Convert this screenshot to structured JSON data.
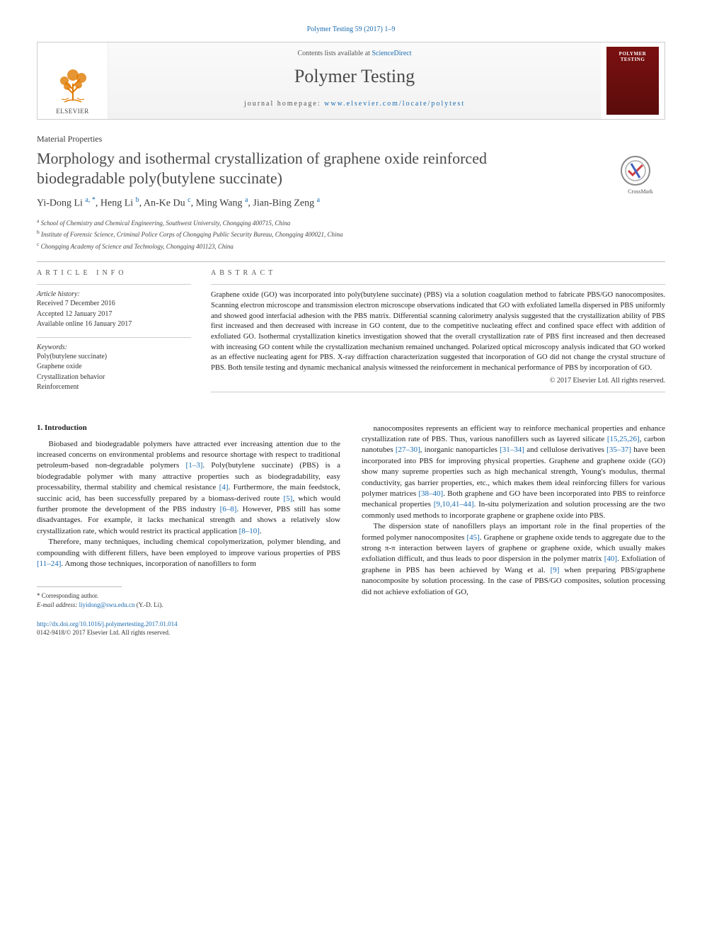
{
  "citation": "Polymer Testing 59 (2017) 1–9",
  "masthead": {
    "contents_prefix": "Contents lists available at ",
    "contents_link": "ScienceDirect",
    "journal": "Polymer Testing",
    "home_prefix": "journal homepage: ",
    "home_url": "www.elsevier.com/locate/polytest",
    "publisher": "ELSEVIER",
    "cover_title": "POLYMER TESTING"
  },
  "section_label": "Material Properties",
  "title": "Morphology and isothermal crystallization of graphene oxide reinforced biodegradable poly(butylene succinate)",
  "crossmark": "CrossMark",
  "authors": [
    {
      "name": "Yi-Dong Li",
      "aff": "a",
      "corr": true
    },
    {
      "name": "Heng Li",
      "aff": "b",
      "corr": false
    },
    {
      "name": "An-Ke Du",
      "aff": "c",
      "corr": false
    },
    {
      "name": "Ming Wang",
      "aff": "a",
      "corr": false
    },
    {
      "name": "Jian-Bing Zeng",
      "aff": "a",
      "corr": false
    }
  ],
  "affiliations": [
    {
      "key": "a",
      "text": "School of Chemistry and Chemical Engineering, Southwest University, Chongqing 400715, China"
    },
    {
      "key": "b",
      "text": "Institute of Forensic Science, Criminal Police Corps of Chongqing Public Security Bureau, Chongqing 400021, China"
    },
    {
      "key": "c",
      "text": "Chongqing Academy of Science and Technology, Chongqing 401123, China"
    }
  ],
  "info": {
    "heading": "ARTICLE INFO",
    "history_label": "Article history:",
    "history": [
      "Received 7 December 2016",
      "Accepted 12 January 2017",
      "Available online 16 January 2017"
    ],
    "keywords_label": "Keywords:",
    "keywords": [
      "Poly(butylene succinate)",
      "Graphene oxide",
      "Crystallization behavior",
      "Reinforcement"
    ]
  },
  "abstract": {
    "heading": "ABSTRACT",
    "text": "Graphene oxide (GO) was incorporated into poly(butylene succinate) (PBS) via a solution coagulation method to fabricate PBS/GO nanocomposites. Scanning electron microscope and transmission electron microscope observations indicated that GO with exfoliated lamella dispersed in PBS uniformly and showed good interfacial adhesion with the PBS matrix. Differential scanning calorimetry analysis suggested that the crystallization ability of PBS first increased and then decreased with increase in GO content, due to the competitive nucleating effect and confined space effect with addition of exfoliated GO. Isothermal crystallization kinetics investigation showed that the overall crystallization rate of PBS first increased and then decreased with increasing GO content while the crystallization mechanism remained unchanged. Polarized optical microscopy analysis indicated that GO worked as an effective nucleating agent for PBS. X-ray diffraction characterization suggested that incorporation of GO did not change the crystal structure of PBS. Both tensile testing and dynamic mechanical analysis witnessed the reinforcement in mechanical performance of PBS by incorporation of GO.",
    "copyright": "© 2017 Elsevier Ltd. All rights reserved."
  },
  "body": {
    "intro_heading": "1. Introduction",
    "left_paras": [
      "Biobased and biodegradable polymers have attracted ever increasing attention due to the increased concerns on environmental problems and resource shortage with respect to traditional petroleum-based non-degradable polymers {{[1–3]}}. Poly(butylene succinate) (PBS) is a biodegradable polymer with many attractive properties such as biodegradability, easy processability, thermal stability and chemical resistance {{[4]}}. Furthermore, the main feedstock, succinic acid, has been successfully prepared by a biomass-derived route {{[5]}}, which would further promote the development of the PBS industry {{[6–8]}}. However, PBS still has some disadvantages. For example, it lacks mechanical strength and shows a relatively slow crystallization rate, which would restrict its practical application {{[8–10]}}.",
      "Therefore, many techniques, including chemical copolymerization, polymer blending, and compounding with different fillers, have been employed to improve various properties of PBS {{[11–24]}}. Among those techniques, incorporation of nanofillers to form"
    ],
    "right_paras": [
      "nanocomposites represents an efficient way to reinforce mechanical properties and enhance crystallization rate of PBS. Thus, various nanofillers such as layered silicate {{[15,25,26]}}, carbon nanotubes {{[27–30]}}, inorganic nanoparticles {{[31–34]}} and cellulose derivatives {{[35–37]}} have been incorporated into PBS for improving physical properties. Graphene and graphene oxide (GO) show many supreme properties such as high mechanical strength, Young's modulus, thermal conductivity, gas barrier properties, etc., which makes them ideal reinforcing fillers for various polymer matrices {{[38–40]}}. Both graphene and GO have been incorporated into PBS to reinforce mechanical properties {{[9,10,41–44]}}. In-situ polymerization and solution processing are the two commonly used methods to incorporate graphene or graphene oxide into PBS.",
      "The dispersion state of nanofillers plays an important role in the final properties of the formed polymer nanocomposites {{[45]}}. Graphene or graphene oxide tends to aggregate due to the strong π-π interaction between layers of graphene or graphene oxide, which usually makes exfoliation difficult, and thus leads to poor dispersion in the polymer matrix {{[40]}}. Exfoliation of graphene in PBS has been achieved by Wang et al. {{[9]}} when preparing PBS/graphene nanocomposite by solution processing. In the case of PBS/GO composites, solution processing did not achieve exfoliation of GO,"
    ]
  },
  "footnote": {
    "corr": "* Corresponding author.",
    "email_label": "E-mail address:",
    "email": "liyidong@swu.edu.cn",
    "email_suffix": "(Y.-D. Li)."
  },
  "doi": {
    "url": "http://dx.doi.org/10.1016/j.polymertesting.2017.01.014",
    "issn_line": "0142-9418/© 2017 Elsevier Ltd. All rights reserved."
  },
  "colors": {
    "link": "#1a6bb0",
    "cover_bg": "#6b0e0e"
  }
}
